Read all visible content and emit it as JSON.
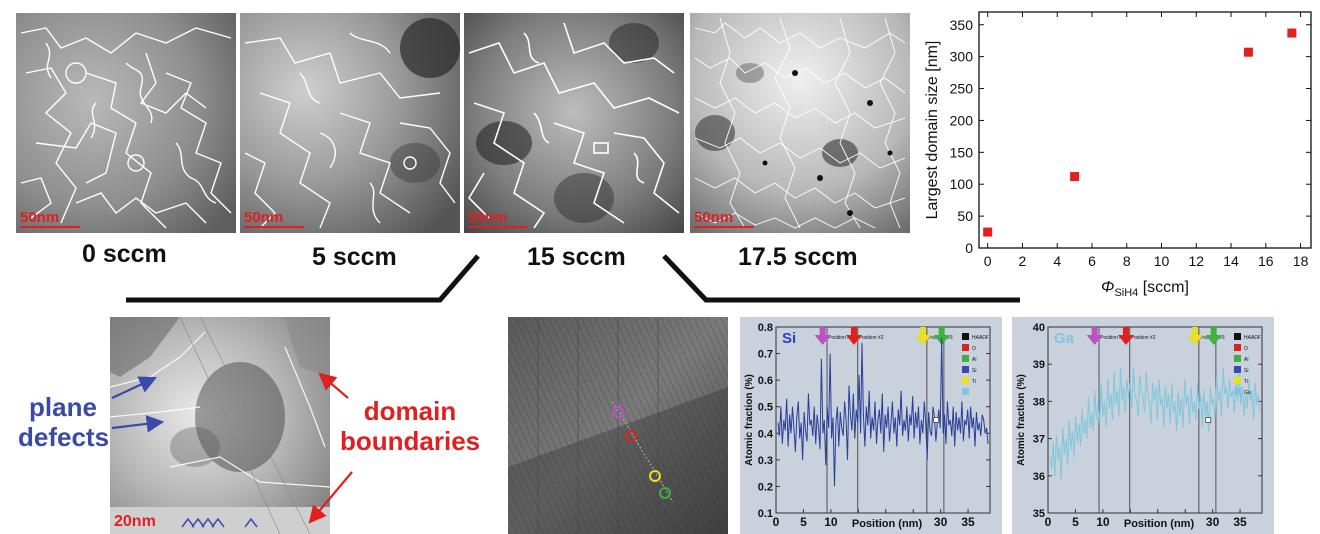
{
  "top_panels": [
    {
      "scale_bar": "50nm",
      "caption": "0 sccm"
    },
    {
      "scale_bar": "50nm",
      "caption": "5 sccm"
    },
    {
      "scale_bar": "50nm",
      "caption": "15 sccm"
    },
    {
      "scale_bar": "50nm",
      "caption": "17.5 sccm"
    }
  ],
  "bottom_left": {
    "scale_bar": "20nm",
    "label_plane": "plane defects",
    "label_plane_line1": "plane",
    "label_plane_line2": "defects",
    "label_domain_line1": "domain",
    "label_domain_line2": "boundaries"
  },
  "colors": {
    "plane": "#3a4aa8",
    "domain": "#e02020",
    "si_line": "#2a3f9a",
    "ga_line": "#7fc7dd",
    "scatter": "#e3201b"
  },
  "chart_data": [
    {
      "type": "scatter",
      "x": [
        0,
        5,
        15,
        17.5
      ],
      "y": [
        25,
        112,
        307,
        337
      ],
      "xlabel_symbol": "Φ",
      "xlabel_sub": "SiH4",
      "xlabel_unit": "[sccm]",
      "ylabel": "Largest domain size [nm]",
      "xlim": [
        -0.5,
        18.6
      ],
      "ylim": [
        0,
        370
      ],
      "xticks": [
        0,
        2,
        4,
        6,
        8,
        10,
        12,
        14,
        16,
        18
      ],
      "yticks": [
        0,
        50,
        100,
        150,
        200,
        250,
        300,
        350
      ],
      "marker_color": "#e3201b"
    },
    {
      "type": "line",
      "label": "Si",
      "xlabel": "Position (nm)",
      "ylabel": "Atomic fraction (%)",
      "ylim": [
        0.1,
        0.8
      ],
      "xlim": [
        0,
        39
      ],
      "xticks": [
        0,
        5,
        10,
        15,
        20,
        25,
        30,
        35
      ],
      "xtick_labels": [
        "0",
        "5",
        "10",
        "",
        "",
        "",
        "30",
        "35"
      ],
      "yticks": [
        0.1,
        0.2,
        0.3,
        0.4,
        0.5,
        0.6,
        0.7,
        0.8
      ],
      "ytick_labels": [
        "0.1",
        "0.2",
        "0.3",
        "0.4",
        "0.5",
        "0.6",
        "0.7",
        "0.8"
      ],
      "markers": [
        "Position #1",
        "Position #2",
        "Position #3"
      ],
      "legend": [
        "HAADF",
        "O",
        "Al",
        "Si",
        "Ti",
        ""
      ],
      "series": [
        {
          "values": [
            0.44,
            0.39,
            0.5,
            0.36,
            0.45,
            0.41,
            0.53,
            0.35,
            0.47,
            0.4,
            0.5,
            0.42,
            0.33,
            0.46,
            0.52,
            0.38,
            0.44,
            0.3,
            0.48,
            0.41,
            0.37,
            0.55,
            0.43,
            0.45,
            0.39,
            0.5,
            0.36,
            0.47,
            0.42,
            0.34,
            0.68,
            0.4,
            0.45,
            0.28,
            0.5,
            0.42,
            0.7,
            0.38,
            0.46,
            0.2,
            0.44,
            0.5,
            0.35,
            0.48,
            0.42,
            0.39,
            0.52,
            0.45,
            0.3,
            0.58,
            0.47,
            0.41,
            0.55,
            0.38,
            0.49,
            0.44,
            0.62,
            0.4,
            0.74,
            0.47,
            0.35,
            0.5,
            0.43,
            0.56,
            0.38,
            0.46,
            0.41,
            0.52,
            0.36,
            0.45,
            0.49,
            0.4,
            0.55,
            0.33,
            0.47,
            0.42,
            0.5,
            0.37,
            0.44,
            0.52,
            0.4,
            0.46,
            0.35,
            0.49,
            0.43,
            0.56,
            0.39,
            0.45,
            0.41,
            0.5,
            0.37,
            0.47,
            0.43,
            0.54,
            0.38,
            0.48,
            0.42,
            0.5,
            0.36,
            0.45,
            0.4,
            0.52,
            0.44,
            0.3,
            0.48,
            0.41,
            0.39,
            0.5,
            0.46,
            0.37,
            0.44,
            0.49,
            0.42,
            0.76,
            0.4,
            0.47,
            0.36,
            0.52,
            0.43,
            0.45,
            0.39,
            0.5,
            0.35,
            0.48,
            0.41,
            0.46,
            0.4,
            0.52,
            0.37,
            0.45,
            0.43,
            0.49,
            0.38,
            0.5,
            0.42,
            0.46,
            0.35,
            0.48,
            0.41,
            0.44,
            0.39,
            0.47,
            0.45,
            0.4,
            0.42,
            0.36
          ]
        }
      ]
    },
    {
      "type": "line",
      "label": "Ga",
      "xlabel": "Position (nm)",
      "ylabel": "Atomic fraction (%)",
      "ylim": [
        35,
        40
      ],
      "xlim": [
        0,
        39
      ],
      "xticks": [
        0,
        5,
        10,
        15,
        20,
        25,
        30,
        35
      ],
      "xtick_labels": [
        "0",
        "5",
        "10",
        "",
        "",
        "",
        "30",
        "35"
      ],
      "yticks": [
        35,
        36,
        37,
        38,
        39,
        40
      ],
      "ytick_labels": [
        "35",
        "36",
        "37",
        "38",
        "39",
        "40"
      ],
      "markers": [
        "Position #1",
        "Position #2",
        "Position #3"
      ],
      "legend": [
        "HAADF",
        "O",
        "Al",
        "Si",
        "Ti",
        "Ga"
      ],
      "series": [
        {
          "values": [
            36.5,
            36.2,
            36.9,
            36.0,
            37.1,
            36.4,
            36.8,
            35.9,
            37.3,
            36.6,
            37.0,
            36.3,
            37.5,
            36.7,
            37.2,
            36.5,
            37.6,
            36.9,
            37.4,
            36.8,
            37.8,
            37.1,
            37.5,
            37.0,
            38.1,
            37.3,
            37.7,
            37.2,
            38.3,
            37.5,
            37.9,
            37.4,
            38.5,
            37.6,
            38.0,
            37.3,
            38.6,
            37.8,
            38.2,
            37.5,
            38.8,
            37.9,
            38.3,
            37.6,
            38.9,
            38.0,
            38.4,
            37.7,
            38.6,
            38.1,
            38.5,
            37.8,
            38.9,
            38.2,
            38.0,
            37.6,
            38.7,
            38.3,
            38.1,
            37.7,
            38.8,
            38.2,
            37.9,
            37.4,
            38.5,
            38.0,
            38.4,
            37.5,
            38.6,
            37.9,
            38.1,
            37.3,
            38.4,
            37.8,
            38.2,
            37.4,
            38.5,
            37.7,
            38.0,
            37.2,
            38.3,
            37.6,
            38.1,
            37.3,
            38.6,
            37.9,
            38.2,
            37.4,
            38.4,
            37.7,
            38.0,
            37.5,
            38.5,
            37.8,
            38.2,
            37.3,
            38.3,
            37.6,
            38.0,
            37.2,
            38.4,
            37.9,
            38.1,
            37.5,
            38.7,
            38.0,
            38.3,
            37.6,
            38.9,
            38.2,
            38.4,
            37.8,
            38.6,
            38.1,
            38.3,
            37.7,
            38.5,
            38.0,
            38.8,
            37.9,
            38.4,
            37.6,
            38.2,
            37.8,
            38.6,
            38.0,
            38.3,
            37.5,
            38.5,
            37.9,
            38.2,
            37.7
          ]
        }
      ]
    }
  ]
}
